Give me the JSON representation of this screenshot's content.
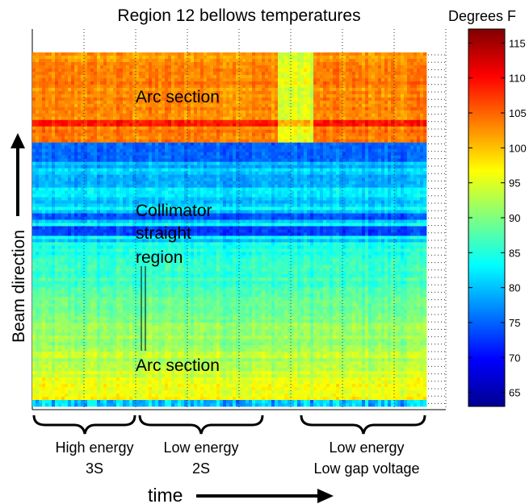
{
  "chart_data": {
    "type": "heatmap",
    "title": "Region 12 bellows temperatures",
    "xlabel": "time",
    "ylabel": "Beam direction",
    "colorbar": {
      "label": "Degrees F",
      "ticks": [
        "115",
        "110",
        "105",
        "100",
        "95",
        "90",
        "85",
        "80",
        "75",
        "70",
        "65"
      ],
      "range": [
        63,
        117
      ],
      "colormap": "jet"
    },
    "regions": [
      {
        "label": "Arc section",
        "temperature_range_F": [
          100,
          106
        ]
      },
      {
        "label_lines": [
          "Collimator",
          "straight",
          "region"
        ],
        "temperature_range_F": [
          72,
          88
        ]
      },
      {
        "label": "Arc section",
        "temperature_range_F": [
          88,
          100
        ]
      }
    ],
    "periods": [
      {
        "lines": [
          "High energy",
          "3S"
        ]
      },
      {
        "lines": [
          "Low energy",
          "2S"
        ]
      },
      {
        "lines": [
          "Low energy",
          "Low gap voltage"
        ]
      }
    ],
    "grid": true
  }
}
